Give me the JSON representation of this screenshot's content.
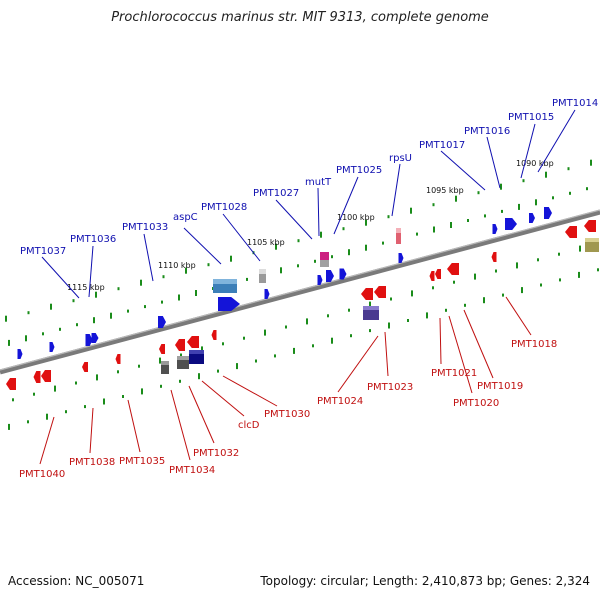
{
  "title": "Prochlorococcus marinus str. MIT 9313, complete genome",
  "accession": "Accession: NC_005071",
  "summary": "Topology: circular; Length: 2,410,873 bp; Genes: 2,324",
  "colors": {
    "forward_gene": "#1414d8",
    "reverse_gene": "#e01010",
    "backbone": "#808080",
    "gc_marks": "#1a8c1a"
  },
  "scale_labels": [
    "1090 kbp",
    "1095 kbp",
    "1100 kbp",
    "1105 kbp",
    "1110 kbp",
    "1115 kbp"
  ],
  "forward_genes": [
    "PMT1014",
    "PMT1015",
    "PMT1016",
    "PMT1017",
    "rpsU",
    "PMT1025",
    "mutT",
    "PMT1027",
    "PMT1028",
    "aspC",
    "PMT1033",
    "PMT1036",
    "PMT1037"
  ],
  "reverse_genes": [
    "PMT1018",
    "PMT1019",
    "PMT1020",
    "PMT1021",
    "PMT1023",
    "PMT1024",
    "PMT1030",
    "clcD",
    "PMT1032",
    "PMT1034",
    "PMT1035",
    "PMT1038",
    "PMT1040"
  ]
}
